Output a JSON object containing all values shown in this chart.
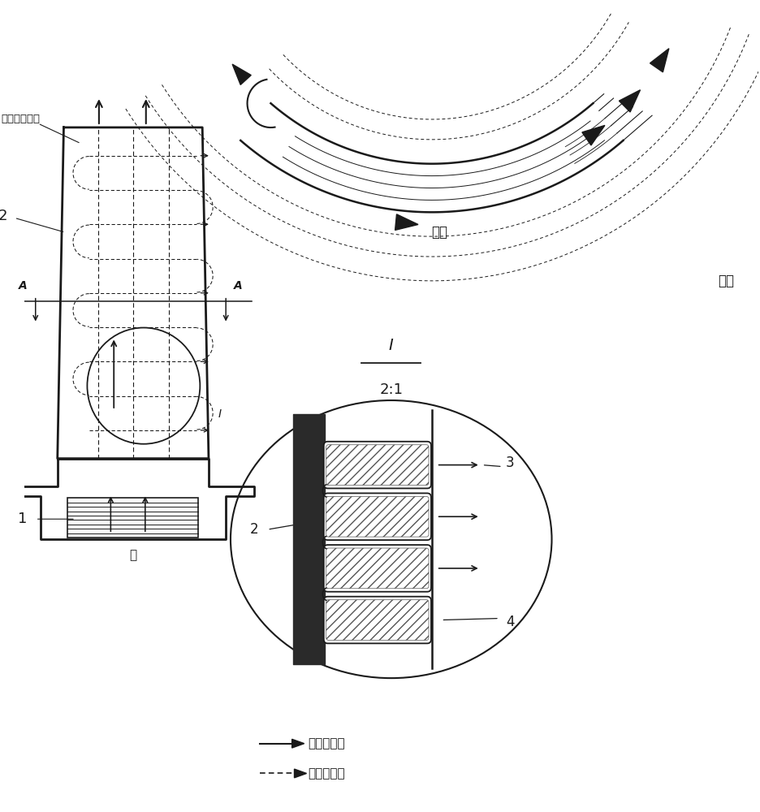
{
  "bg_color": "#ffffff",
  "line_color": "#1a1a1a",
  "text_qimokong": "气膜孔未示出",
  "text_qi": "气",
  "text_ranqi": "燃气",
  "text_lengqi": "冷气",
  "text_legend1": "：冷气流向",
  "text_legend2": "：燃气流向",
  "font_size_small": 10,
  "font_size_medium": 12,
  "font_size_large": 14
}
